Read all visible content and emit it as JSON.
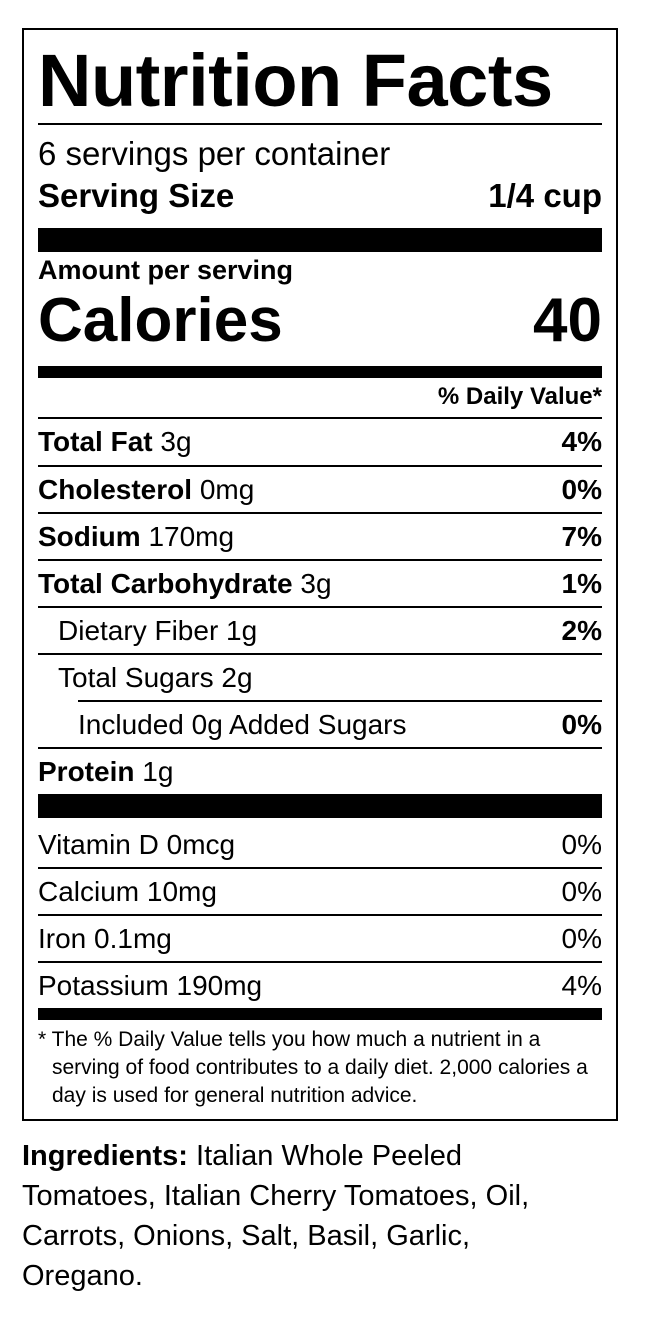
{
  "label": {
    "title": "Nutrition Facts",
    "servings_per_container": "6 servings per container",
    "serving_size_label": "Serving Size",
    "serving_size_value": "1/4 cup",
    "amount_per_serving": "Amount per serving",
    "calories_label": "Calories",
    "calories_value": "40",
    "daily_value_header": "% Daily Value*",
    "nutrients": [
      {
        "name": "Total Fat",
        "amount": "3g",
        "dv": "4%"
      },
      {
        "name": "Cholesterol",
        "amount": "0mg",
        "dv": "0%"
      },
      {
        "name": "Sodium",
        "amount": "170mg",
        "dv": "7%"
      },
      {
        "name": "Total Carbohydrate",
        "amount": "3g",
        "dv": "1%"
      },
      {
        "name": "Dietary Fiber 1g",
        "dv": "2%"
      },
      {
        "name": "Total Sugars 2g",
        "dv": ""
      },
      {
        "name": "Included 0g Added Sugars",
        "dv": "0%"
      },
      {
        "name": "Protein",
        "amount": "1g",
        "dv": ""
      }
    ],
    "vitamins": [
      {
        "name": "Vitamin D 0mcg",
        "dv": "0%"
      },
      {
        "name": "Calcium 10mg",
        "dv": "0%"
      },
      {
        "name": "Iron 0.1mg",
        "dv": "0%"
      },
      {
        "name": "Potassium 190mg",
        "dv": "4%"
      }
    ],
    "footnote": "* The % Daily Value tells you how much a nutrient in a serving of food contributes to a daily diet. 2,000 calories a day is used for general nutrition advice."
  },
  "ingredients": {
    "heading": "Ingredients:",
    "text": "Italian Whole Peeled Tomatoes, Italian Cherry Tomatoes, Oil, Carrots, Onions, Salt, Basil, Garlic, Oregano."
  }
}
